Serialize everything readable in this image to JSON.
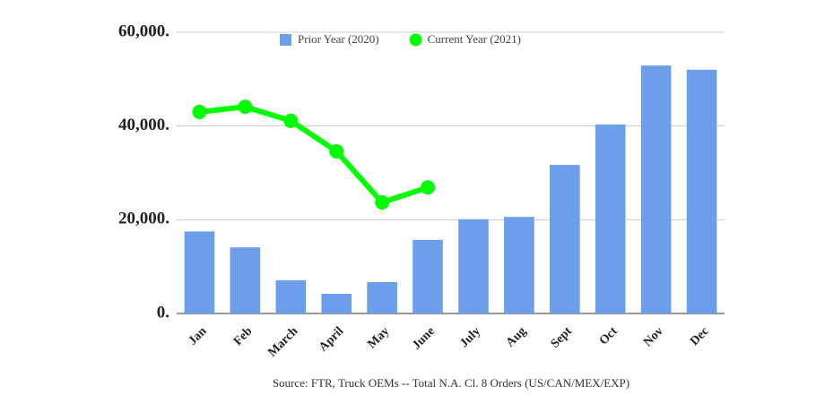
{
  "chart_data": {
    "type": "bar-line",
    "categories": [
      "Jan",
      "Feb",
      "March",
      "April",
      "May",
      "June",
      "July",
      "Aug",
      "Sept",
      "Oct",
      "Nov",
      "Dec"
    ],
    "series": [
      {
        "name": "Prior Year (2020)",
        "type": "bar",
        "color": "#6d9eeb",
        "values": [
          17500,
          14100,
          7100,
          4200,
          6700,
          15700,
          20100,
          20600,
          31700,
          40300,
          52900,
          52000
        ]
      },
      {
        "name": "Current Year (2021)",
        "type": "line",
        "color": "#00ff00",
        "values": [
          43000,
          44100,
          41100,
          34600,
          23700,
          26900,
          null,
          null,
          null,
          null,
          null,
          null
        ]
      }
    ],
    "ylim": [
      0,
      60000
    ],
    "yticks": [
      {
        "value": 0,
        "label": "0."
      },
      {
        "value": 20000,
        "label": "20,000."
      },
      {
        "value": 40000,
        "label": "40,000."
      },
      {
        "value": 60000,
        "label": "60,000."
      }
    ],
    "grid": true,
    "legend": "top",
    "source": "Source: FTR, Truck OEMs -- Total N.A. Cl. 8 Orders (US/CAN/MEX/EXP)"
  }
}
